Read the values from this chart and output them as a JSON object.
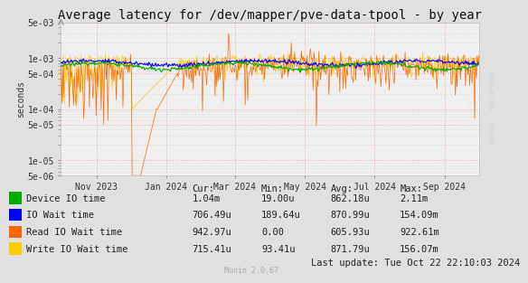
{
  "title": "Average latency for /dev/mapper/pve-data-tpool - by year",
  "ylabel": "seconds",
  "bg_color": "#e0e0e0",
  "plot_bg_color": "#f0f0f0",
  "grid_color_major": "#ff9999",
  "grid_color_minor": "#cccccc",
  "yticks": [
    5e-06,
    1e-05,
    5e-05,
    0.0001,
    0.0005,
    0.001,
    0.005
  ],
  "ytick_labels": [
    "5e-06",
    "1e-05",
    "5e-05",
    "1e-04",
    "5e-04",
    "1e-03",
    "5e-03"
  ],
  "xticklabels": [
    "Nov 2023",
    "Jan 2024",
    "Mar 2024",
    "May 2024",
    "Jul 2024",
    "Sep 2024"
  ],
  "line_colors": {
    "device_io": "#00aa00",
    "io_wait": "#0000ff",
    "read_io_wait": "#ff6600",
    "write_io_wait": "#ffcc00"
  },
  "stats_rows": [
    {
      "label": "Device IO time",
      "color": "#00aa00",
      "cur": "1.04m",
      "min": "19.00u",
      "avg": "862.18u",
      "max": "2.11m"
    },
    {
      "label": "IO Wait time",
      "color": "#0000ff",
      "cur": "706.49u",
      "min": "189.64u",
      "avg": "870.99u",
      "max": "154.09m"
    },
    {
      "label": "Read IO Wait time",
      "color": "#ff6600",
      "cur": "942.97u",
      "min": "0.00",
      "avg": "605.93u",
      "max": "922.61m"
    },
    {
      "label": "Write IO Wait time",
      "color": "#ffcc00",
      "cur": "715.41u",
      "min": "93.41u",
      "avg": "871.79u",
      "max": "156.07m"
    }
  ],
  "footer": "Last update: Tue Oct 22 22:10:03 2024",
  "watermark": "Munin 2.0.67",
  "rrdtool_text": "RRDTOOL / TOBI OETIKER",
  "ymin": 5e-06,
  "ymax": 0.005,
  "title_fontsize": 10,
  "axis_fontsize": 7,
  "table_fontsize": 7.5
}
